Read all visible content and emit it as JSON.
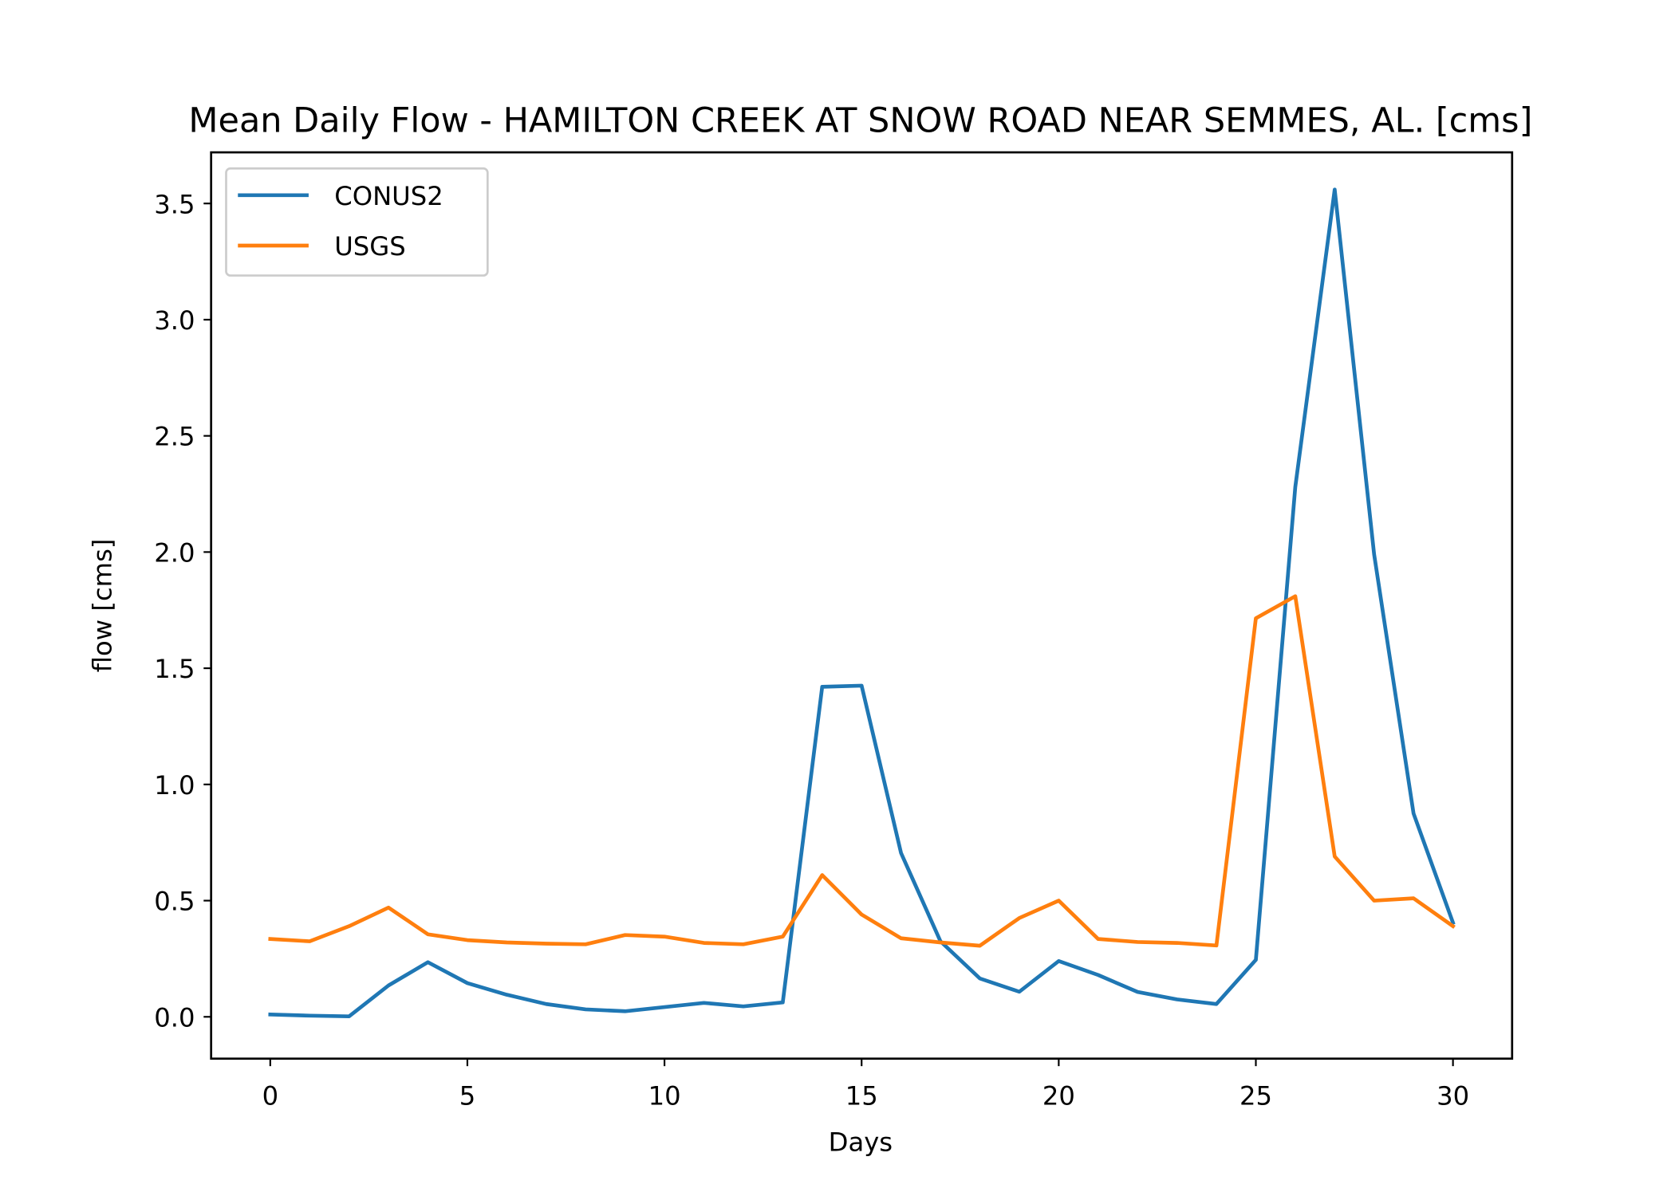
{
  "chart_data": {
    "type": "line",
    "title": "Mean Daily Flow - HAMILTON CREEK AT SNOW ROAD NEAR SEMMES, AL. [cms]",
    "xlabel": "Days",
    "ylabel": "flow [cms]",
    "xlim": [
      -1.5,
      31.5
    ],
    "ylim": [
      -0.18,
      3.72
    ],
    "xticks": [
      0,
      5,
      10,
      15,
      20,
      25,
      30
    ],
    "xtick_labels": [
      "0",
      "5",
      "10",
      "15",
      "20",
      "25",
      "30"
    ],
    "yticks": [
      0.0,
      0.5,
      1.0,
      1.5,
      2.0,
      2.5,
      3.0,
      3.5
    ],
    "ytick_labels": [
      "0.0",
      "0.5",
      "1.0",
      "1.5",
      "2.0",
      "2.5",
      "3.0",
      "3.5"
    ],
    "grid": false,
    "legend_position": "upper-left",
    "x": [
      0,
      1,
      2,
      3,
      4,
      5,
      6,
      7,
      8,
      9,
      10,
      11,
      12,
      13,
      14,
      15,
      16,
      17,
      18,
      19,
      20,
      21,
      22,
      23,
      24,
      25,
      26,
      27,
      28,
      29,
      30
    ],
    "series": [
      {
        "name": "CONUS2",
        "color": "#1f77b4",
        "values": [
          0.01,
          0.005,
          0.002,
          0.135,
          0.235,
          0.145,
          0.095,
          0.055,
          0.032,
          0.024,
          0.042,
          0.06,
          0.045,
          0.062,
          1.42,
          1.425,
          0.705,
          0.325,
          0.165,
          0.108,
          0.24,
          0.18,
          0.107,
          0.075,
          0.055,
          0.245,
          2.28,
          3.56,
          1.99,
          0.875,
          0.405
        ]
      },
      {
        "name": "USGS",
        "color": "#ff7f0e",
        "values": [
          0.335,
          0.325,
          0.39,
          0.47,
          0.355,
          0.33,
          0.32,
          0.315,
          0.312,
          0.352,
          0.345,
          0.318,
          0.312,
          0.345,
          0.61,
          0.44,
          0.338,
          0.32,
          0.306,
          0.425,
          0.5,
          0.335,
          0.322,
          0.318,
          0.307,
          1.715,
          1.81,
          0.69,
          0.5,
          0.51,
          0.39
        ]
      }
    ]
  }
}
